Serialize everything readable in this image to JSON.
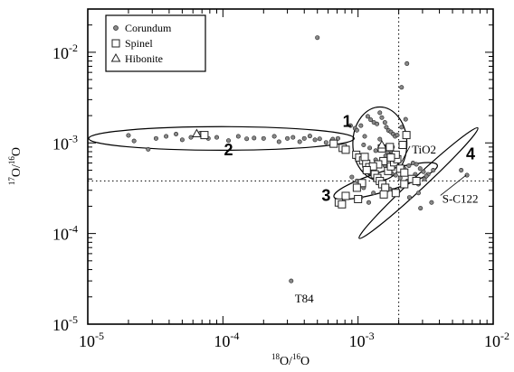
{
  "chart_data": {
    "type": "scatter",
    "xscale": "log",
    "yscale": "log",
    "xlim": [
      1e-05,
      0.01
    ],
    "ylim": [
      1e-05,
      0.03
    ],
    "xlabel": {
      "sup": "18",
      "main1": "O/",
      "sup2": "16",
      "main2": "O"
    },
    "ylabel": {
      "sup": "17",
      "main1": "O/",
      "sup2": "16",
      "main2": "O"
    },
    "x_ticks": [
      {
        "value": 1e-05,
        "base": "10",
        "exp": "-5"
      },
      {
        "value": 0.0001,
        "base": "10",
        "exp": "-4"
      },
      {
        "value": 0.001,
        "base": "10",
        "exp": "-3"
      },
      {
        "value": 0.01,
        "base": "10",
        "exp": "-2"
      }
    ],
    "y_ticks": [
      {
        "value": 1e-05,
        "base": "10",
        "exp": "-5"
      },
      {
        "value": 0.0001,
        "base": "10",
        "exp": "-4"
      },
      {
        "value": 0.001,
        "base": "10",
        "exp": "-3"
      },
      {
        "value": 0.01,
        "base": "10",
        "exp": "-2"
      }
    ],
    "reference_lines": {
      "x": 0.002,
      "y": 0.00038
    },
    "legend_position": "top-left",
    "series": [
      {
        "name": "Corundum",
        "marker": "circle",
        "points": [
          [
            2e-05,
            0.00121
          ],
          [
            2.2e-05,
            0.00105
          ],
          [
            2.8e-05,
            0.00085
          ],
          [
            3.2e-05,
            0.00112
          ],
          [
            3.8e-05,
            0.00118
          ],
          [
            4.5e-05,
            0.00125
          ],
          [
            5e-05,
            0.00108
          ],
          [
            5.8e-05,
            0.00115
          ],
          [
            6.8e-05,
            0.00128
          ],
          [
            7.8e-05,
            0.00112
          ],
          [
            9e-05,
            0.00115
          ],
          [
            0.00011,
            0.00106
          ],
          [
            0.00013,
            0.00118
          ],
          [
            0.00015,
            0.00111
          ],
          [
            0.00017,
            0.00113
          ],
          [
            0.0002,
            0.00112
          ],
          [
            0.00024,
            0.00118
          ],
          [
            0.00026,
            0.00103
          ],
          [
            0.0003,
            0.00112
          ],
          [
            0.00033,
            0.00115
          ],
          [
            0.00037,
            0.00103
          ],
          [
            0.0004,
            0.00112
          ],
          [
            0.00044,
            0.00119
          ],
          [
            0.00048,
            0.00108
          ],
          [
            0.00052,
            0.00111
          ],
          [
            0.00058,
            0.00101
          ],
          [
            0.00064,
            0.00105
          ],
          [
            0.00071,
            0.00112
          ],
          [
            0.00076,
            0.00092
          ],
          [
            0.00082,
            0.00081
          ],
          [
            0.00088,
            0.00155
          ],
          [
            0.00095,
            0.00145
          ],
          [
            0.00098,
            0.00138
          ],
          [
            0.00105,
            0.00155
          ],
          [
            0.00112,
            0.00118
          ],
          [
            0.00118,
            0.00196
          ],
          [
            0.00124,
            0.0018
          ],
          [
            0.00131,
            0.00168
          ],
          [
            0.00138,
            0.00162
          ],
          [
            0.00145,
            0.00215
          ],
          [
            0.0015,
            0.0019
          ],
          [
            0.00158,
            0.00168
          ],
          [
            0.00162,
            0.00149
          ],
          [
            0.00168,
            0.00137
          ],
          [
            0.00175,
            0.00132
          ],
          [
            0.00182,
            0.00125
          ],
          [
            0.00188,
            0.00118
          ],
          [
            0.00195,
            0.00122
          ],
          [
            0.0021,
            0.00149
          ],
          [
            0.00225,
            0.00182
          ],
          [
            0.0011,
            0.00095
          ],
          [
            0.00122,
            0.00088
          ],
          [
            0.00135,
            0.00082
          ],
          [
            0.00148,
            0.00092
          ],
          [
            0.0016,
            0.00086
          ],
          [
            0.00172,
            0.00075
          ],
          [
            0.00185,
            0.00068
          ],
          [
            0.002,
            0.00062
          ],
          [
            0.00135,
            0.00065
          ],
          [
            0.00148,
            0.0006
          ],
          [
            0.00158,
            0.00056
          ],
          [
            0.00168,
            0.0005
          ],
          [
            0.00178,
            0.00046
          ],
          [
            0.0019,
            0.00044
          ],
          [
            0.00205,
            0.00041
          ],
          [
            0.00112,
            0.0005
          ],
          [
            0.00122,
            0.00046
          ],
          [
            0.00132,
            0.00042
          ],
          [
            0.00142,
            0.00038
          ],
          [
            0.00152,
            0.00035
          ],
          [
            0.00162,
            0.00033
          ],
          [
            0.00172,
            0.00031
          ],
          [
            0.00182,
            0.0003
          ],
          [
            0.00198,
            0.00029
          ],
          [
            0.00215,
            0.00034
          ],
          [
            0.00232,
            0.00038
          ],
          [
            0.00248,
            0.00041
          ],
          [
            0.00265,
            0.00045
          ],
          [
            0.0028,
            0.00035
          ],
          [
            0.0031,
            0.0004
          ],
          [
            0.0033,
            0.00045
          ],
          [
            0.0036,
            0.0005
          ],
          [
            0.0022,
            0.00052
          ],
          [
            0.00238,
            0.00056
          ],
          [
            0.00255,
            0.0006
          ],
          [
            0.0027,
            0.00058
          ],
          [
            0.00288,
            0.00052
          ],
          [
            0.00305,
            0.00048
          ],
          [
            0.0032,
            0.00043
          ],
          [
            0.0028,
            0.00028
          ],
          [
            0.0024,
            0.00025
          ],
          [
            0.0013,
            0.00028
          ],
          [
            0.0011,
            0.00032
          ],
          [
            0.00098,
            0.00038
          ],
          [
            0.0009,
            0.00042
          ],
          [
            0.00105,
            0.00025
          ],
          [
            0.0012,
            0.00022
          ],
          [
            0.0018,
            0.0009
          ],
          [
            0.0016,
            0.00072
          ],
          [
            0.0014,
            0.00056
          ],
          [
            0.0029,
            0.00019
          ],
          [
            0.0035,
            0.00022
          ],
          [
            0.00145,
            0.0011
          ],
          [
            0.00165,
            0.00078
          ],
          [
            0.00178,
            0.0008
          ],
          [
            0.0005,
            0.0145
          ],
          [
            0.0023,
            0.0075
          ],
          [
            0.0021,
            0.0041
          ],
          [
            0.00065,
            0.0011
          ],
          [
            0.0058,
            0.0005
          ],
          [
            0.0064,
            0.00044
          ],
          [
            0.00032,
            3e-05
          ]
        ]
      },
      {
        "name": "Spinel",
        "marker": "square",
        "points": [
          [
            7.3e-05,
            0.00122
          ],
          [
            0.00066,
            0.00098
          ],
          [
            0.00077,
            0.00088
          ],
          [
            0.00081,
            0.00084
          ],
          [
            0.00097,
            0.00074
          ],
          [
            0.00102,
            0.00069
          ],
          [
            0.00109,
            0.00064
          ],
          [
            0.00115,
            0.00059
          ],
          [
            0.00121,
            0.00054
          ],
          [
            0.00127,
            0.00049
          ],
          [
            0.00133,
            0.00045
          ],
          [
            0.00139,
            0.00041
          ],
          [
            0.00145,
            0.00038
          ],
          [
            0.00151,
            0.00035
          ],
          [
            0.00159,
            0.00032
          ],
          [
            0.00167,
            0.00049
          ],
          [
            0.00175,
            0.00055
          ],
          [
            0.00185,
            0.00061
          ],
          [
            0.00195,
            0.00066
          ],
          [
            0.00205,
            0.00052
          ],
          [
            0.0022,
            0.00047
          ],
          [
            0.00228,
            0.00122
          ],
          [
            0.00214,
            0.00095
          ],
          [
            0.0019,
            0.00074
          ],
          [
            0.00175,
            0.00069
          ],
          [
            0.00154,
            0.00063
          ],
          [
            0.00141,
            0.00058
          ],
          [
            0.00129,
            0.00055
          ],
          [
            0.00116,
            0.0005
          ],
          [
            0.00107,
            0.00036
          ],
          [
            0.00098,
            0.00032
          ],
          [
            0.00081,
            0.00026
          ],
          [
            0.00072,
            0.00022
          ],
          [
            0.00076,
            0.00021
          ],
          [
            0.001,
            0.00024
          ],
          [
            0.00155,
            0.00027
          ],
          [
            0.0019,
            0.00028
          ],
          [
            0.0022,
            0.00035
          ],
          [
            0.0025,
            0.0004
          ],
          [
            0.0027,
            0.00038
          ],
          [
            0.0015,
            0.00087
          ],
          [
            0.00172,
            0.0009
          ],
          [
            0.00112,
            0.0007
          ]
        ]
      },
      {
        "name": "Hibonite",
        "marker": "triangle",
        "points": [
          [
            6.4e-05,
            0.00125
          ],
          [
            0.0015,
            0.00094
          ]
        ]
      }
    ],
    "groups": [
      {
        "label": "1",
        "center": [
          0.00145,
          0.00098
        ],
        "rx_dex": 0.2,
        "ry_dex": 0.405,
        "angle": 0
      },
      {
        "label": "2",
        "center": [
          9.75e-05,
          0.00112
        ],
        "rx_dex": 0.982,
        "ry_dex": 0.13,
        "angle": 0
      },
      {
        "label": "3",
        "center": [
          0.0016,
          0.00038
        ],
        "rx_dex": 0.4,
        "ry_dex": 0.11,
        "angle": 17
      },
      {
        "label": "4",
        "center": [
          0.0028,
          0.00036
        ],
        "rx_dex": 0.6,
        "ry_dex": 0.07,
        "angle": 43
      }
    ],
    "group_labels": [
      {
        "text": "1",
        "x": 0.00083,
        "y": 0.0015
      },
      {
        "text": "2",
        "x": 0.00011,
        "y": 0.00073
      },
      {
        "text": "3",
        "x": 0.00058,
        "y": 0.00023
      },
      {
        "text": "4",
        "x": 0.0068,
        "y": 0.00066
      }
    ],
    "annotations": [
      {
        "text": "TiO2",
        "x": 0.0025,
        "y": 0.00084,
        "target": [
          0.0021,
          0.00062
        ]
      },
      {
        "text": "S-C122",
        "x": 0.0042,
        "y": 0.00024,
        "target": [
          0.0063,
          0.00044
        ]
      },
      {
        "text": "T84",
        "x": 0.00034,
        "y": 1.9e-05
      }
    ]
  }
}
